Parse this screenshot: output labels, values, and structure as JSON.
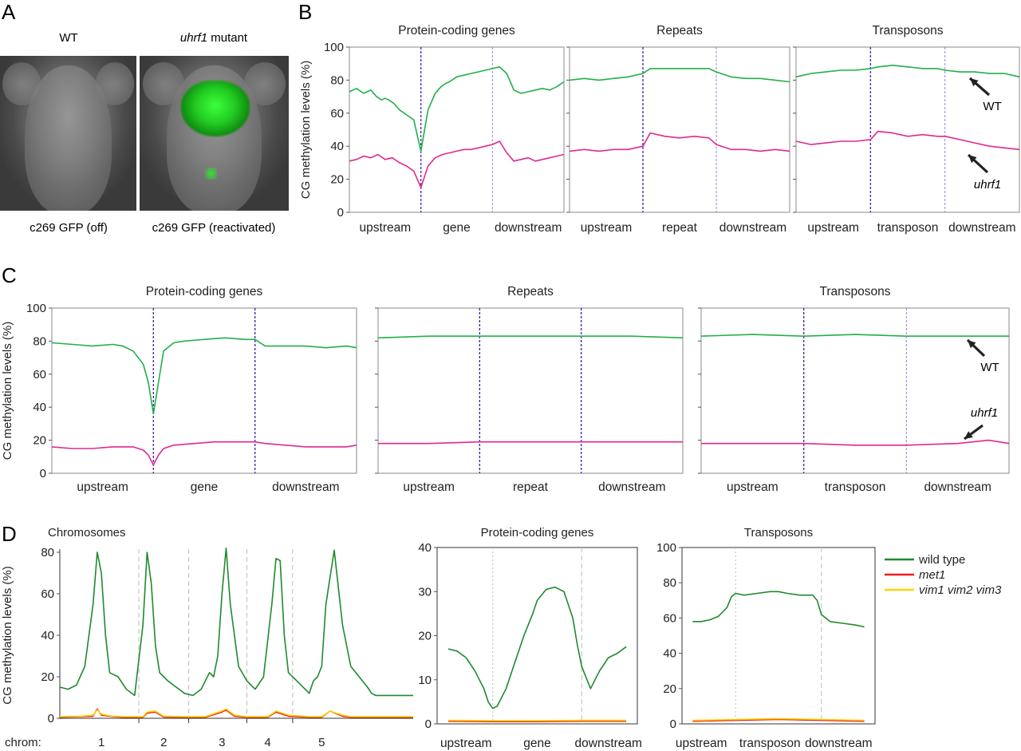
{
  "panel_labels": {
    "a": "A",
    "b": "B",
    "c": "C",
    "d": "D"
  },
  "panel_a": {
    "col_titles": [
      {
        "text": "WT",
        "italic": "",
        "rest": ""
      },
      {
        "text": "",
        "italic": "uhrf1",
        "rest": " mutant"
      }
    ],
    "captions": [
      "c269 GFP (off)",
      "c269 GFP (reactivated)"
    ],
    "photo_descriptions": [
      "dark grey zebrafish head, no signal",
      "zebrafish head with bright green GFP signal"
    ]
  },
  "colors": {
    "wt": "#21b04b",
    "uhrf1": "#e2288e",
    "vline_dark": "#4b2ea0",
    "vline_light": "#9c7fd8",
    "d_wt": "#1f8a2e",
    "d_met1": "#ee1c1c",
    "d_vim": "#ffd400",
    "d_vline": "#bdbdbd",
    "axis": "#555555"
  },
  "ylabel": "CG methylation levels (%)",
  "annotations": {
    "wt": "WT",
    "uhrf1": "uhrf1"
  },
  "chart_data": [
    {
      "id": "B1",
      "type": "line",
      "title": "Protein-coding genes",
      "ylim": [
        0,
        100
      ],
      "yticks": [
        0,
        20,
        40,
        60,
        80,
        100
      ],
      "regions": [
        "upstream",
        "gene",
        "downstream"
      ],
      "series": [
        {
          "name": "WT",
          "x": [
            0,
            0.1,
            0.2,
            0.3,
            0.38,
            0.45,
            0.5,
            0.55,
            0.62,
            0.7,
            0.8,
            0.9,
            1,
            1.1,
            1.2,
            1.28,
            1.35,
            1.4,
            1.5,
            1.6,
            1.7,
            1.8,
            1.9,
            2,
            2.1,
            2.2,
            2.3,
            2.4,
            2.5,
            2.6,
            2.7,
            2.8,
            2.9,
            3
          ],
          "y": [
            73,
            75,
            72,
            74,
            70,
            68,
            69,
            68,
            66,
            62,
            59,
            56,
            37,
            62,
            72,
            76,
            78,
            79,
            82,
            83,
            84,
            85,
            86,
            87,
            88,
            84,
            74,
            72,
            73,
            74,
            75,
            74,
            76,
            79
          ]
        },
        {
          "name": "uhrf1",
          "x": [
            0,
            0.1,
            0.2,
            0.3,
            0.4,
            0.5,
            0.6,
            0.7,
            0.8,
            0.9,
            1,
            1.1,
            1.2,
            1.3,
            1.4,
            1.5,
            1.6,
            1.7,
            1.8,
            1.9,
            2,
            2.1,
            2.2,
            2.3,
            2.4,
            2.5,
            2.6,
            2.7,
            2.8,
            2.9,
            3
          ],
          "y": [
            31,
            32,
            34,
            33,
            35,
            32,
            33,
            30,
            28,
            25,
            15,
            28,
            33,
            35,
            36,
            37,
            38,
            38,
            39,
            40,
            41,
            43,
            36,
            31,
            32,
            33,
            31,
            32,
            33,
            34,
            35
          ]
        }
      ]
    },
    {
      "id": "B2",
      "type": "line",
      "title": "Repeats",
      "ylim": [
        0,
        100
      ],
      "yticks": [
        0,
        20,
        40,
        60,
        80,
        100
      ],
      "regions": [
        "upstream",
        "repeat",
        "downstream"
      ],
      "series": [
        {
          "name": "WT",
          "x": [
            0,
            0.2,
            0.4,
            0.6,
            0.8,
            1,
            1.1,
            1.3,
            1.5,
            1.7,
            1.9,
            2,
            2.2,
            2.4,
            2.6,
            2.8,
            3
          ],
          "y": [
            80,
            81,
            80,
            81,
            82,
            84,
            87,
            87,
            87,
            87,
            87,
            85,
            82,
            81,
            81,
            80,
            79
          ]
        },
        {
          "name": "uhrf1",
          "x": [
            0,
            0.2,
            0.4,
            0.6,
            0.8,
            1,
            1.1,
            1.3,
            1.5,
            1.7,
            1.9,
            2,
            2.2,
            2.4,
            2.6,
            2.8,
            3
          ],
          "y": [
            37,
            38,
            37,
            38,
            38,
            40,
            48,
            46,
            45,
            46,
            45,
            41,
            38,
            38,
            37,
            38,
            37
          ]
        }
      ]
    },
    {
      "id": "B3",
      "type": "line",
      "title": "Transposons",
      "ylim": [
        0,
        100
      ],
      "yticks": [
        0,
        20,
        40,
        60,
        80,
        100
      ],
      "regions": [
        "upstream",
        "transposon",
        "downstream"
      ],
      "series": [
        {
          "name": "WT",
          "x": [
            0,
            0.2,
            0.4,
            0.6,
            0.8,
            1,
            1.1,
            1.3,
            1.5,
            1.7,
            1.9,
            2,
            2.2,
            2.4,
            2.6,
            2.8,
            3
          ],
          "y": [
            82,
            84,
            85,
            86,
            86,
            87,
            88,
            89,
            88,
            87,
            87,
            86,
            85,
            85,
            84,
            84,
            82
          ]
        },
        {
          "name": "uhrf1",
          "x": [
            0,
            0.2,
            0.4,
            0.6,
            0.8,
            1,
            1.1,
            1.3,
            1.5,
            1.7,
            1.9,
            2,
            2.2,
            2.4,
            2.6,
            2.8,
            3
          ],
          "y": [
            43,
            41,
            42,
            43,
            43,
            44,
            49,
            48,
            46,
            47,
            46,
            46,
            44,
            42,
            40,
            39,
            38
          ]
        }
      ]
    },
    {
      "id": "C1",
      "type": "line",
      "title": "Protein-coding genes",
      "ylim": [
        0,
        100
      ],
      "yticks": [
        0,
        20,
        40,
        60,
        80,
        100
      ],
      "regions": [
        "upstream",
        "gene",
        "downstream"
      ],
      "series": [
        {
          "name": "WT",
          "x": [
            0,
            0.2,
            0.4,
            0.6,
            0.7,
            0.8,
            0.9,
            0.95,
            1,
            1.05,
            1.1,
            1.2,
            1.3,
            1.5,
            1.7,
            1.9,
            2,
            2.1,
            2.3,
            2.5,
            2.7,
            2.9,
            3
          ],
          "y": [
            79,
            78,
            77,
            78,
            77,
            74,
            66,
            55,
            36,
            55,
            74,
            79,
            80,
            81,
            82,
            81,
            81,
            77,
            77,
            77,
            76,
            77,
            76
          ]
        },
        {
          "name": "uhrf1",
          "x": [
            0,
            0.2,
            0.4,
            0.6,
            0.8,
            0.9,
            0.95,
            1,
            1.05,
            1.1,
            1.2,
            1.4,
            1.6,
            1.8,
            2,
            2.1,
            2.3,
            2.5,
            2.7,
            2.9,
            3
          ],
          "y": [
            16,
            15,
            15,
            16,
            16,
            14,
            11,
            5,
            11,
            15,
            17,
            18,
            19,
            19,
            19,
            18,
            17,
            16,
            16,
            16,
            17
          ]
        }
      ]
    },
    {
      "id": "C2",
      "type": "line",
      "title": "Repeats",
      "ylim": [
        0,
        100
      ],
      "yticks": [
        0,
        20,
        40,
        60,
        80,
        100
      ],
      "regions": [
        "upstream",
        "repeat",
        "downstream"
      ],
      "series": [
        {
          "name": "WT",
          "x": [
            0,
            0.5,
            1,
            1.5,
            2,
            2.5,
            3
          ],
          "y": [
            82,
            83,
            83,
            83,
            83,
            83,
            82
          ]
        },
        {
          "name": "uhrf1",
          "x": [
            0,
            0.5,
            1,
            1.5,
            2,
            2.5,
            3
          ],
          "y": [
            18,
            18,
            19,
            19,
            19,
            19,
            19
          ]
        }
      ]
    },
    {
      "id": "C3",
      "type": "line",
      "title": "Transposons",
      "ylim": [
        0,
        100
      ],
      "yticks": [
        0,
        20,
        40,
        60,
        80,
        100
      ],
      "regions": [
        "upstream",
        "transposon",
        "downstream"
      ],
      "series": [
        {
          "name": "WT",
          "x": [
            0,
            0.5,
            1,
            1.5,
            2,
            2.5,
            3
          ],
          "y": [
            83,
            84,
            83,
            84,
            83,
            83,
            83
          ]
        },
        {
          "name": "uhrf1",
          "x": [
            0,
            0.5,
            1,
            1.5,
            2,
            2.5,
            2.8,
            3
          ],
          "y": [
            18,
            18,
            18,
            17,
            17,
            18,
            20,
            18
          ]
        }
      ]
    },
    {
      "id": "D1",
      "type": "line",
      "title": "Chromosomes",
      "ylim": [
        0,
        80
      ],
      "yticks": [
        0,
        20,
        40,
        60,
        80
      ],
      "xlabel_prefix": "chrom:",
      "chromosomes": [
        "1",
        "2",
        "3",
        "4",
        "5"
      ],
      "series": [
        {
          "name": "wild type",
          "x": [
            0,
            0.2,
            0.4,
            0.6,
            0.8,
            0.9,
            1,
            1.1,
            1.2,
            1.4,
            1.6,
            1.8,
            2,
            2.1,
            2.2,
            2.3,
            2.4,
            2.5,
            2.6,
            2.8,
            3,
            3.2,
            3.4,
            3.6,
            3.7,
            3.8,
            3.9,
            4,
            4.1,
            4.3,
            4.5,
            4.7,
            4.9,
            5.1,
            5.2,
            5.3,
            5.4,
            5.5,
            5.7,
            5.9,
            6,
            6.1,
            6.2,
            6.3,
            6.4,
            6.6,
            6.8,
            7,
            7.2,
            7.4,
            7.5,
            7.6,
            7.7,
            7.8,
            8,
            8.2,
            8.4,
            8.5
          ],
          "y": [
            15,
            14,
            16,
            25,
            55,
            80,
            70,
            40,
            22,
            20,
            14,
            11,
            45,
            80,
            65,
            35,
            22,
            20,
            18,
            15,
            12,
            11,
            14,
            22,
            20,
            30,
            60,
            82,
            55,
            25,
            18,
            14,
            20,
            55,
            77,
            76,
            40,
            22,
            18,
            14,
            12,
            18,
            20,
            25,
            55,
            81,
            45,
            25,
            20,
            15,
            12,
            11,
            11,
            11,
            11,
            11,
            11,
            11
          ]
        },
        {
          "name": "met1",
          "x": [
            0,
            0.5,
            0.8,
            0.9,
            1,
            1.2,
            1.5,
            2,
            2.1,
            2.3,
            2.5,
            3,
            3.5,
            3.9,
            4,
            4.2,
            4.5,
            5,
            5.2,
            5.5,
            6,
            6.3,
            6.5,
            6.8,
            7,
            7.5,
            8,
            8.5
          ],
          "y": [
            0.5,
            0.8,
            1,
            4.5,
            1.5,
            1,
            0.5,
            0.5,
            2.5,
            3,
            0.6,
            0.5,
            0.5,
            3,
            4,
            1,
            0.5,
            0.5,
            3,
            1,
            0.5,
            0.5,
            3.5,
            1,
            0.5,
            0.5,
            0.5,
            0.5
          ]
        },
        {
          "name": "vim1 vim2 vim3",
          "x": [
            0,
            0.5,
            0.8,
            0.9,
            1,
            1.2,
            1.5,
            2,
            2.1,
            2.3,
            2.5,
            3,
            3.5,
            3.9,
            4,
            4.2,
            4.5,
            5,
            5.2,
            5.5,
            6,
            6.3,
            6.5,
            6.8,
            7,
            7.5,
            8,
            8.5
          ],
          "y": [
            0.8,
            1,
            1.5,
            4,
            2,
            1.2,
            0.8,
            0.8,
            3,
            3.5,
            1,
            0.8,
            0.8,
            3.5,
            4.5,
            1.5,
            0.8,
            0.8,
            3.5,
            1.5,
            0.8,
            0.8,
            3.5,
            1.5,
            0.8,
            0.8,
            0.8,
            0.8
          ]
        }
      ]
    },
    {
      "id": "D2",
      "type": "line",
      "title": "Protein-coding genes",
      "ylim": [
        0,
        40
      ],
      "yticks": [
        0,
        10,
        20,
        30,
        40
      ],
      "regions": [
        "upstream",
        "gene",
        "downstream"
      ],
      "series": [
        {
          "name": "wild type",
          "x": [
            0,
            0.2,
            0.4,
            0.6,
            0.8,
            0.9,
            1,
            1.1,
            1.3,
            1.5,
            1.7,
            1.9,
            2,
            2.2,
            2.4,
            2.6,
            2.8,
            2.9,
            3,
            3.2,
            3.4,
            3.6,
            3.8,
            4
          ],
          "y": [
            17,
            16.5,
            15,
            12,
            8,
            5,
            3.5,
            4,
            8,
            14,
            20,
            25,
            28,
            30.5,
            31,
            30,
            24,
            18,
            13,
            8,
            12,
            15,
            16,
            17.5
          ]
        },
        {
          "name": "met1",
          "x": [
            0,
            1,
            2,
            3,
            4
          ],
          "y": [
            0.6,
            0.5,
            0.5,
            0.6,
            0.6
          ]
        },
        {
          "name": "vim1 vim2 vim3",
          "x": [
            0,
            1,
            2,
            3,
            4
          ],
          "y": [
            0.8,
            0.7,
            0.7,
            0.8,
            0.8
          ]
        }
      ]
    },
    {
      "id": "D3",
      "type": "line",
      "title": "Transposons",
      "ylim": [
        0,
        100
      ],
      "yticks": [
        0,
        20,
        40,
        60,
        80,
        100
      ],
      "regions": [
        "upstream",
        "transposon",
        "downstream"
      ],
      "series": [
        {
          "name": "wild type",
          "x": [
            0,
            0.2,
            0.4,
            0.6,
            0.8,
            0.9,
            1,
            1.2,
            1.5,
            1.8,
            2,
            2.2,
            2.5,
            2.8,
            2.9,
            3,
            3.2,
            3.5,
            3.8,
            4
          ],
          "y": [
            58,
            58,
            59,
            61,
            66,
            72,
            74,
            73,
            74,
            75,
            75,
            74,
            73,
            73,
            70,
            62,
            58,
            57,
            56,
            55
          ]
        },
        {
          "name": "met1",
          "x": [
            0,
            1,
            2,
            3,
            4
          ],
          "y": [
            1.5,
            2,
            2.5,
            2,
            1.5
          ]
        },
        {
          "name": "vim1 vim2 vim3",
          "x": [
            0,
            1,
            2,
            3,
            4
          ],
          "y": [
            2,
            2.5,
            3,
            2.5,
            2
          ]
        }
      ]
    }
  ],
  "legend_d": [
    {
      "name": "wild type",
      "italic": false
    },
    {
      "name": "met1",
      "italic": true
    },
    {
      "name": "vim1 vim2 vim3",
      "italic": true
    }
  ]
}
